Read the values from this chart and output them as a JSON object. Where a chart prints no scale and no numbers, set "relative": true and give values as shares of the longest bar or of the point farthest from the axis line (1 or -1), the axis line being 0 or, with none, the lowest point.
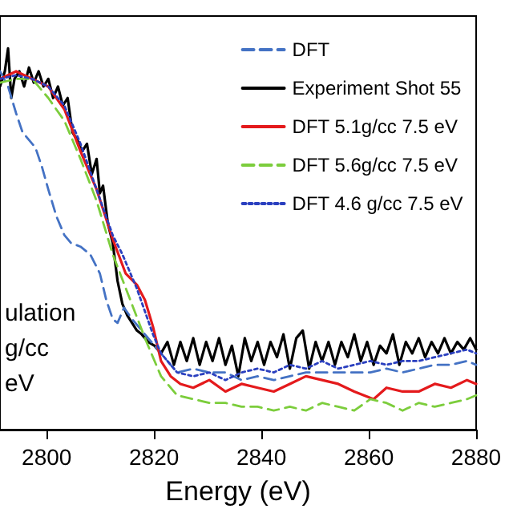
{
  "chart_data": {
    "type": "line",
    "relative": true,
    "xlabel": "Energy (eV)",
    "xlim": [
      2791.3,
      2880
    ],
    "xticks": [
      2800,
      2820,
      2840,
      2860,
      2880
    ],
    "legend": "top right",
    "grid": false,
    "marker": "none",
    "annotations": [
      "ulation",
      "g/cc",
      "eV"
    ],
    "series": [
      {
        "name": "DFT",
        "color": "#4472c4",
        "line_style": "dashed",
        "x": [
          2791.3,
          2792.8,
          2794.3,
          2795.5,
          2796.7,
          2797.9,
          2799.1,
          2800.3,
          2801.8,
          2803.3,
          2804.5,
          2806.3,
          2808.1,
          2809.9,
          2811.1,
          2812.3,
          2813.2,
          2814.4,
          2815.9,
          2818.3,
          2821.3,
          2824.3,
          2827.3,
          2830.3,
          2833.3,
          2836.3,
          2839.3,
          2842.3,
          2845.3,
          2848.3,
          2851.3,
          2854.3,
          2857.3,
          2860.3,
          2863.3,
          2866.3,
          2869.3,
          2872.3,
          2875.3,
          2878.3,
          2880
        ],
        "values": [
          0.94,
          0.9,
          0.83,
          0.78,
          0.76,
          0.74,
          0.69,
          0.63,
          0.56,
          0.51,
          0.49,
          0.48,
          0.46,
          0.41,
          0.34,
          0.29,
          0.28,
          0.32,
          0.29,
          0.25,
          0.2,
          0.15,
          0.16,
          0.15,
          0.15,
          0.13,
          0.14,
          0.13,
          0.14,
          0.15,
          0.15,
          0.15,
          0.15,
          0.15,
          0.16,
          0.15,
          0.16,
          0.17,
          0.17,
          0.18,
          0.17
        ]
      },
      {
        "name": "Experiment Shot 55",
        "color": "#000000",
        "line_style": "solid",
        "x": [
          2791.3,
          2792.2,
          2792.8,
          2793.4,
          2794.0,
          2794.9,
          2795.8,
          2796.7,
          2797.6,
          2798.5,
          2799.4,
          2800.3,
          2801.2,
          2802.1,
          2803.0,
          2803.9,
          2804.8,
          2805.7,
          2806.6,
          2807.5,
          2808.4,
          2809.3,
          2809.9,
          2810.5,
          2811.4,
          2812.3,
          2813.2,
          2814.1,
          2815.0,
          2815.9,
          2816.8,
          2817.7,
          2818.9,
          2820.1,
          2821.3,
          2822.5,
          2823.7,
          2824.9,
          2826.1,
          2827.3,
          2828.5,
          2829.7,
          2830.9,
          2832.1,
          2833.3,
          2834.5,
          2835.7,
          2836.9,
          2838.1,
          2839.3,
          2840.5,
          2841.7,
          2842.9,
          2844.1,
          2845.3,
          2846.5,
          2847.7,
          2848.9,
          2850.1,
          2851.3,
          2852.5,
          2853.7,
          2854.9,
          2856.1,
          2857.3,
          2858.5,
          2859.7,
          2860.9,
          2862.1,
          2863.3,
          2864.5,
          2865.7,
          2866.9,
          2868.1,
          2869.3,
          2870.5,
          2871.7,
          2872.9,
          2874.1,
          2875.3,
          2876.5,
          2877.7,
          2878.9,
          2880
        ],
        "values": [
          0.9,
          0.94,
          1.0,
          0.87,
          0.92,
          0.94,
          0.9,
          0.95,
          0.91,
          0.94,
          0.9,
          0.92,
          0.87,
          0.9,
          0.85,
          0.87,
          0.78,
          0.76,
          0.73,
          0.75,
          0.67,
          0.71,
          0.62,
          0.64,
          0.54,
          0.49,
          0.39,
          0.33,
          0.3,
          0.28,
          0.26,
          0.25,
          0.23,
          0.22,
          0.2,
          0.23,
          0.17,
          0.23,
          0.18,
          0.24,
          0.17,
          0.23,
          0.18,
          0.24,
          0.17,
          0.22,
          0.14,
          0.24,
          0.18,
          0.23,
          0.17,
          0.23,
          0.19,
          0.25,
          0.16,
          0.24,
          0.26,
          0.16,
          0.23,
          0.18,
          0.23,
          0.17,
          0.23,
          0.19,
          0.25,
          0.18,
          0.23,
          0.17,
          0.22,
          0.2,
          0.25,
          0.17,
          0.23,
          0.2,
          0.24,
          0.19,
          0.23,
          0.2,
          0.24,
          0.2,
          0.23,
          0.21,
          0.24,
          0.21
        ]
      },
      {
        "name": "DFT 5.1g/cc 7.5 eV",
        "color": "#e41a1c",
        "line_style": "solid",
        "x": [
          2791.3,
          2794.3,
          2797.3,
          2800.3,
          2803.3,
          2806.3,
          2809.3,
          2812.3,
          2814.7,
          2816.8,
          2818.3,
          2819.8,
          2821.3,
          2823.1,
          2824.9,
          2827.3,
          2830.3,
          2833.3,
          2836.3,
          2839.3,
          2842.3,
          2845.3,
          2848.3,
          2851.3,
          2854.3,
          2857.3,
          2860.9,
          2863.3,
          2866.3,
          2869.3,
          2872.3,
          2875.3,
          2878.3,
          2880
        ],
        "values": [
          0.92,
          0.94,
          0.92,
          0.9,
          0.84,
          0.73,
          0.63,
          0.5,
          0.41,
          0.38,
          0.34,
          0.27,
          0.18,
          0.14,
          0.12,
          0.11,
          0.13,
          0.1,
          0.12,
          0.11,
          0.1,
          0.12,
          0.14,
          0.13,
          0.12,
          0.1,
          0.08,
          0.11,
          0.1,
          0.1,
          0.12,
          0.11,
          0.13,
          0.12
        ]
      },
      {
        "name": "DFT 5.6g/cc 7.5 eV",
        "color": "#7ccd3c",
        "line_style": "dashed",
        "x": [
          2791.3,
          2794.3,
          2797.3,
          2800.3,
          2803.3,
          2806.3,
          2809.3,
          2812.3,
          2815.3,
          2818.3,
          2821.3,
          2824.3,
          2827.3,
          2830.3,
          2833.3,
          2836.3,
          2839.3,
          2842.3,
          2845.3,
          2848.3,
          2851.3,
          2854.3,
          2857.3,
          2860.3,
          2863.3,
          2866.3,
          2869.3,
          2872.3,
          2875.3,
          2878.3,
          2880
        ],
        "values": [
          0.91,
          0.92,
          0.92,
          0.87,
          0.81,
          0.71,
          0.6,
          0.46,
          0.35,
          0.24,
          0.14,
          0.09,
          0.08,
          0.07,
          0.07,
          0.06,
          0.06,
          0.05,
          0.06,
          0.05,
          0.07,
          0.06,
          0.05,
          0.08,
          0.07,
          0.05,
          0.07,
          0.06,
          0.07,
          0.08,
          0.09
        ]
      },
      {
        "name": "DFT 4.6 g/cc 7.5 eV",
        "color": "#2a3fbf",
        "line_style": "dotted",
        "x": [
          2791.3,
          2794.3,
          2797.3,
          2800.3,
          2803.3,
          2806.3,
          2809.3,
          2812.3,
          2814.1,
          2815.3,
          2816.8,
          2818.3,
          2819.8,
          2821.3,
          2824.3,
          2827.3,
          2830.3,
          2833.3,
          2836.3,
          2839.3,
          2842.3,
          2845.3,
          2848.3,
          2851.3,
          2854.3,
          2857.3,
          2860.3,
          2863.3,
          2866.3,
          2869.3,
          2872.3,
          2875.3,
          2878.3,
          2880
        ],
        "values": [
          0.92,
          0.93,
          0.92,
          0.9,
          0.85,
          0.75,
          0.63,
          0.51,
          0.46,
          0.42,
          0.37,
          0.31,
          0.25,
          0.2,
          0.15,
          0.14,
          0.15,
          0.13,
          0.15,
          0.16,
          0.15,
          0.17,
          0.16,
          0.18,
          0.16,
          0.17,
          0.18,
          0.17,
          0.18,
          0.18,
          0.19,
          0.2,
          0.21,
          0.2
        ]
      }
    ]
  }
}
